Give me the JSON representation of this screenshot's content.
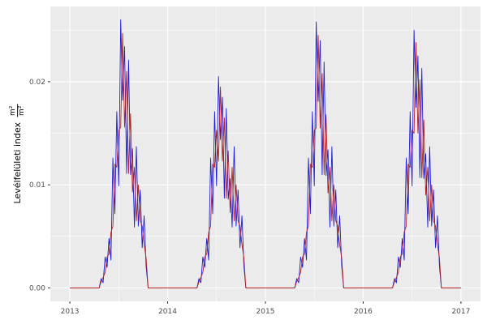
{
  "figure": {
    "background": "#FFFFFF",
    "panel_background": "#EBEBEB",
    "grid_color": "#FFFFFF",
    "tick_color": "#333333",
    "axis_text_color": "#4D4D4D"
  },
  "chart_data": {
    "type": "line",
    "title": "",
    "xlabel": "",
    "ylabel": "Levélfelületi index m²/m²",
    "ylabel_text": "Levélfelületi index",
    "ylabel_frac_num": "m²",
    "ylabel_frac_den": "m²",
    "legend": "none",
    "grid": "on",
    "x_ticks": [
      2013,
      2014,
      2015,
      2016,
      2017
    ],
    "x_tick_labels": [
      "2013",
      "2014",
      "2015",
      "2016",
      "2017"
    ],
    "x_minor_ticks": [
      2013.5,
      2014.5,
      2015.5,
      2016.5
    ],
    "y_ticks": [
      0,
      0.01,
      0.02
    ],
    "y_tick_labels": [
      "0.00",
      "0.01",
      "0.02"
    ],
    "y_minor_ticks": [
      0.005,
      0.015,
      0.025
    ],
    "xlim": [
      2012.8,
      2017.2
    ],
    "ylim": [
      -0.0013,
      0.0273
    ],
    "x_start": 2013,
    "x_step": 0.02,
    "series": [
      {
        "name": "blue",
        "color": "#1C1CD8",
        "values": [
          0,
          0,
          0,
          0,
          0,
          0,
          0,
          0,
          0,
          0,
          0,
          0,
          0,
          0,
          0,
          0,
          0.0009,
          0.0005,
          0.003,
          0.002,
          0.0048,
          0.0027,
          0.0126,
          0.0072,
          0.0171,
          0.0099,
          0.026,
          0.0182,
          0.0234,
          0.0111,
          0.0221,
          0.011,
          0.0135,
          0.0059,
          0.0137,
          0.006,
          0.0095,
          0.0039,
          0.007,
          0.0021,
          0,
          0,
          0,
          0,
          0,
          0,
          0,
          0,
          0,
          0,
          0,
          0,
          0,
          0,
          0,
          0,
          0,
          0,
          0,
          0,
          0,
          0,
          0,
          0,
          0,
          0,
          0.0009,
          0.0005,
          0.003,
          0.002,
          0.0048,
          0.0027,
          0.0126,
          0.0072,
          0.0171,
          0.0099,
          0.0205,
          0.0144,
          0.0185,
          0.0087,
          0.0174,
          0.0086,
          0.0106,
          0.0059,
          0.0137,
          0.006,
          0.0095,
          0.0039,
          0.007,
          0.0021,
          0,
          0,
          0,
          0,
          0,
          0,
          0,
          0,
          0,
          0,
          0,
          0,
          0,
          0,
          0,
          0,
          0,
          0,
          0,
          0,
          0,
          0,
          0,
          0,
          0,
          0,
          0.0009,
          0.0005,
          0.003,
          0.002,
          0.0048,
          0.0027,
          0.0126,
          0.0072,
          0.0171,
          0.0099,
          0.0258,
          0.0181,
          0.024,
          0.011,
          0.0219,
          0.0109,
          0.0134,
          0.0059,
          0.0137,
          0.006,
          0.0095,
          0.0039,
          0.007,
          0.0021,
          0,
          0,
          0,
          0,
          0,
          0,
          0,
          0,
          0,
          0,
          0,
          0,
          0,
          0,
          0,
          0,
          0,
          0,
          0,
          0,
          0,
          0,
          0,
          0,
          0,
          0,
          0.0009,
          0.0005,
          0.003,
          0.002,
          0.0048,
          0.0027,
          0.0126,
          0.0072,
          0.0171,
          0.0099,
          0.025,
          0.0175,
          0.0225,
          0.0107,
          0.0213,
          0.0106,
          0.013,
          0.0059,
          0.0137,
          0.006,
          0.0095,
          0.0039,
          0.007,
          0.0021,
          0,
          0,
          0,
          0,
          0,
          0,
          0,
          0,
          0,
          0,
          0
        ]
      },
      {
        "name": "darkred",
        "color": "#B22222",
        "values": [
          0,
          0,
          0,
          0,
          0,
          0,
          0,
          0,
          0,
          0,
          0,
          0,
          0,
          0,
          0,
          0,
          0.0006,
          0.001,
          0.0015,
          0.003,
          0.0033,
          0.0054,
          0.006,
          0.012,
          0.0117,
          0.0153,
          0.0156,
          0.0247,
          0.0156,
          0.021,
          0.0111,
          0.0169,
          0.0093,
          0.0117,
          0.0065,
          0.01,
          0.0065,
          0.006,
          0.0042,
          0.0029,
          0,
          0,
          0,
          0,
          0,
          0,
          0,
          0,
          0,
          0,
          0,
          0,
          0,
          0,
          0,
          0,
          0,
          0,
          0,
          0,
          0,
          0,
          0,
          0,
          0,
          0,
          0.0006,
          0.001,
          0.0015,
          0.003,
          0.0033,
          0.0054,
          0.006,
          0.012,
          0.0117,
          0.0153,
          0.0123,
          0.0195,
          0.0123,
          0.0165,
          0.0087,
          0.0133,
          0.0073,
          0.0117,
          0.0065,
          0.01,
          0.0065,
          0.006,
          0.0042,
          0.0029,
          0,
          0,
          0,
          0,
          0,
          0,
          0,
          0,
          0,
          0,
          0,
          0,
          0,
          0,
          0,
          0,
          0,
          0,
          0,
          0,
          0,
          0,
          0,
          0,
          0,
          0,
          0.0006,
          0.001,
          0.0015,
          0.003,
          0.0033,
          0.0054,
          0.006,
          0.012,
          0.0117,
          0.0153,
          0.0155,
          0.0245,
          0.0155,
          0.0208,
          0.011,
          0.0168,
          0.0092,
          0.0117,
          0.0065,
          0.01,
          0.0065,
          0.006,
          0.0042,
          0.0029,
          0,
          0,
          0,
          0,
          0,
          0,
          0,
          0,
          0,
          0,
          0,
          0,
          0,
          0,
          0,
          0,
          0,
          0,
          0,
          0,
          0,
          0,
          0,
          0,
          0,
          0,
          0.0006,
          0.001,
          0.0015,
          0.003,
          0.0033,
          0.0054,
          0.006,
          0.012,
          0.0117,
          0.0153,
          0.015,
          0.0238,
          0.015,
          0.0202,
          0.0107,
          0.0163,
          0.009,
          0.0117,
          0.0065,
          0.01,
          0.0065,
          0.006,
          0.0042,
          0.0029,
          0,
          0,
          0,
          0,
          0,
          0,
          0,
          0,
          0,
          0,
          0
        ]
      }
    ]
  }
}
